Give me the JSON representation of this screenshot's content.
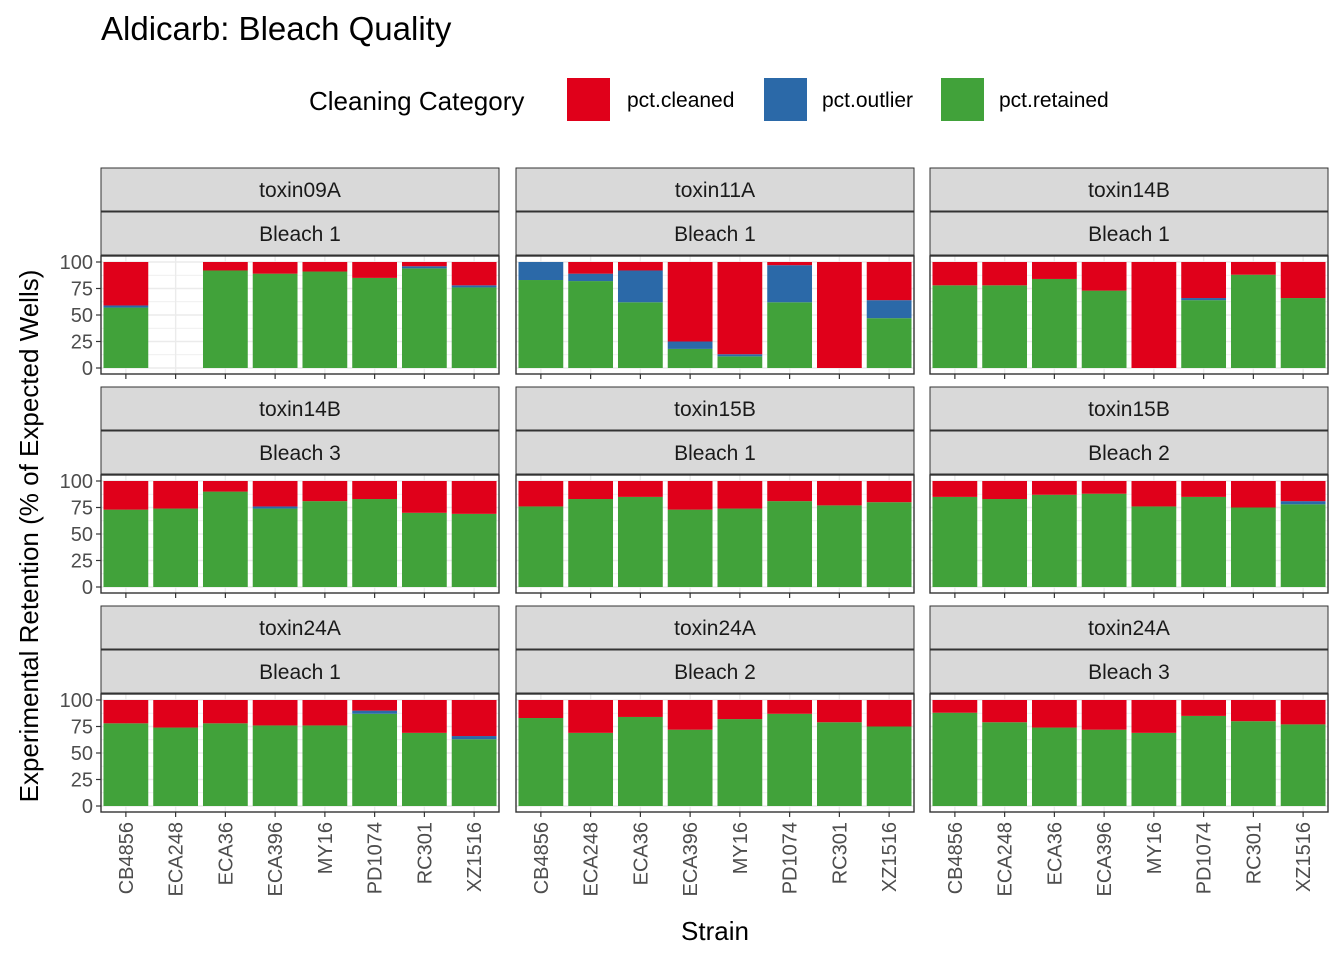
{
  "title": "Aldicarb: Bleach Quality",
  "colors": {
    "cleaned": "#E0001A",
    "outlier": "#2B69A8",
    "retained": "#41A23A",
    "strip_fill": "#D9D9D9",
    "grid": "#EBEBEB",
    "text": "#000000",
    "axis_text": "#4D4D4D"
  },
  "chart_data": {
    "type": "bar",
    "stacked": true,
    "facet_layout": "3x3",
    "xlabel": "Strain",
    "ylabel": "Experimental Retention (% of Expected Wells)",
    "ylim": [
      0,
      100
    ],
    "yticks": [
      0,
      25,
      50,
      75,
      100
    ],
    "legend": {
      "title": "Cleaning Category",
      "position": "top",
      "entries": [
        {
          "key": "cleaned",
          "label": "pct.cleaned"
        },
        {
          "key": "outlier",
          "label": "pct.outlier"
        },
        {
          "key": "retained",
          "label": "pct.retained"
        }
      ]
    },
    "categories": [
      "CB4856",
      "ECA248",
      "ECA36",
      "ECA396",
      "MY16",
      "PD1074",
      "RC301",
      "XZ1516"
    ],
    "panels": [
      {
        "toxin": "toxin09A",
        "bleach": "Bleach 1",
        "retained": [
          57,
          null,
          92,
          89,
          91,
          85,
          94,
          76
        ],
        "outlier": [
          2,
          null,
          0,
          0,
          0,
          0,
          2,
          2
        ],
        "cleaned": [
          41,
          null,
          8,
          11,
          9,
          15,
          4,
          22
        ]
      },
      {
        "toxin": "toxin11A",
        "bleach": "Bleach 1",
        "retained": [
          83,
          82,
          62,
          18,
          11,
          62,
          0,
          47
        ],
        "outlier": [
          17,
          7,
          30,
          7,
          2,
          35,
          0,
          17
        ],
        "cleaned": [
          0,
          11,
          8,
          75,
          87,
          3,
          100,
          36
        ]
      },
      {
        "toxin": "toxin14B",
        "bleach": "Bleach 1",
        "retained": [
          78,
          78,
          84,
          73,
          0,
          64,
          88,
          66
        ],
        "outlier": [
          0,
          0,
          0,
          0,
          0,
          2,
          0,
          0
        ],
        "cleaned": [
          22,
          22,
          16,
          27,
          100,
          34,
          12,
          34
        ]
      },
      {
        "toxin": "toxin14B",
        "bleach": "Bleach 3",
        "retained": [
          73,
          74,
          90,
          74,
          81,
          83,
          70,
          69
        ],
        "outlier": [
          0,
          0,
          0,
          2,
          0,
          0,
          0,
          0
        ],
        "cleaned": [
          27,
          26,
          10,
          24,
          19,
          17,
          30,
          31
        ]
      },
      {
        "toxin": "toxin15B",
        "bleach": "Bleach 1",
        "retained": [
          76,
          83,
          85,
          73,
          74,
          81,
          77,
          80
        ],
        "outlier": [
          0,
          0,
          0,
          0,
          0,
          0,
          0,
          0
        ],
        "cleaned": [
          24,
          17,
          15,
          27,
          26,
          19,
          23,
          20
        ]
      },
      {
        "toxin": "toxin15B",
        "bleach": "Bleach 2",
        "retained": [
          85,
          83,
          87,
          88,
          76,
          85,
          75,
          78
        ],
        "outlier": [
          0,
          0,
          0,
          0,
          0,
          0,
          0,
          3
        ],
        "cleaned": [
          15,
          17,
          13,
          12,
          24,
          15,
          25,
          19
        ]
      },
      {
        "toxin": "toxin24A",
        "bleach": "Bleach 1",
        "retained": [
          78,
          74,
          78,
          76,
          76,
          87,
          69,
          63
        ],
        "outlier": [
          0,
          0,
          0,
          0,
          0,
          3,
          0,
          3
        ],
        "cleaned": [
          22,
          26,
          22,
          24,
          24,
          10,
          31,
          34
        ]
      },
      {
        "toxin": "toxin24A",
        "bleach": "Bleach 2",
        "retained": [
          83,
          69,
          84,
          72,
          82,
          87,
          79,
          75
        ],
        "outlier": [
          0,
          0,
          0,
          0,
          0,
          0,
          0,
          0
        ],
        "cleaned": [
          17,
          31,
          16,
          28,
          18,
          13,
          21,
          25
        ]
      },
      {
        "toxin": "toxin24A",
        "bleach": "Bleach 3",
        "retained": [
          88,
          79,
          74,
          72,
          69,
          85,
          80,
          77
        ],
        "outlier": [
          0,
          0,
          0,
          0,
          0,
          0,
          0,
          0
        ],
        "cleaned": [
          12,
          21,
          26,
          28,
          31,
          15,
          20,
          23
        ]
      }
    ]
  }
}
